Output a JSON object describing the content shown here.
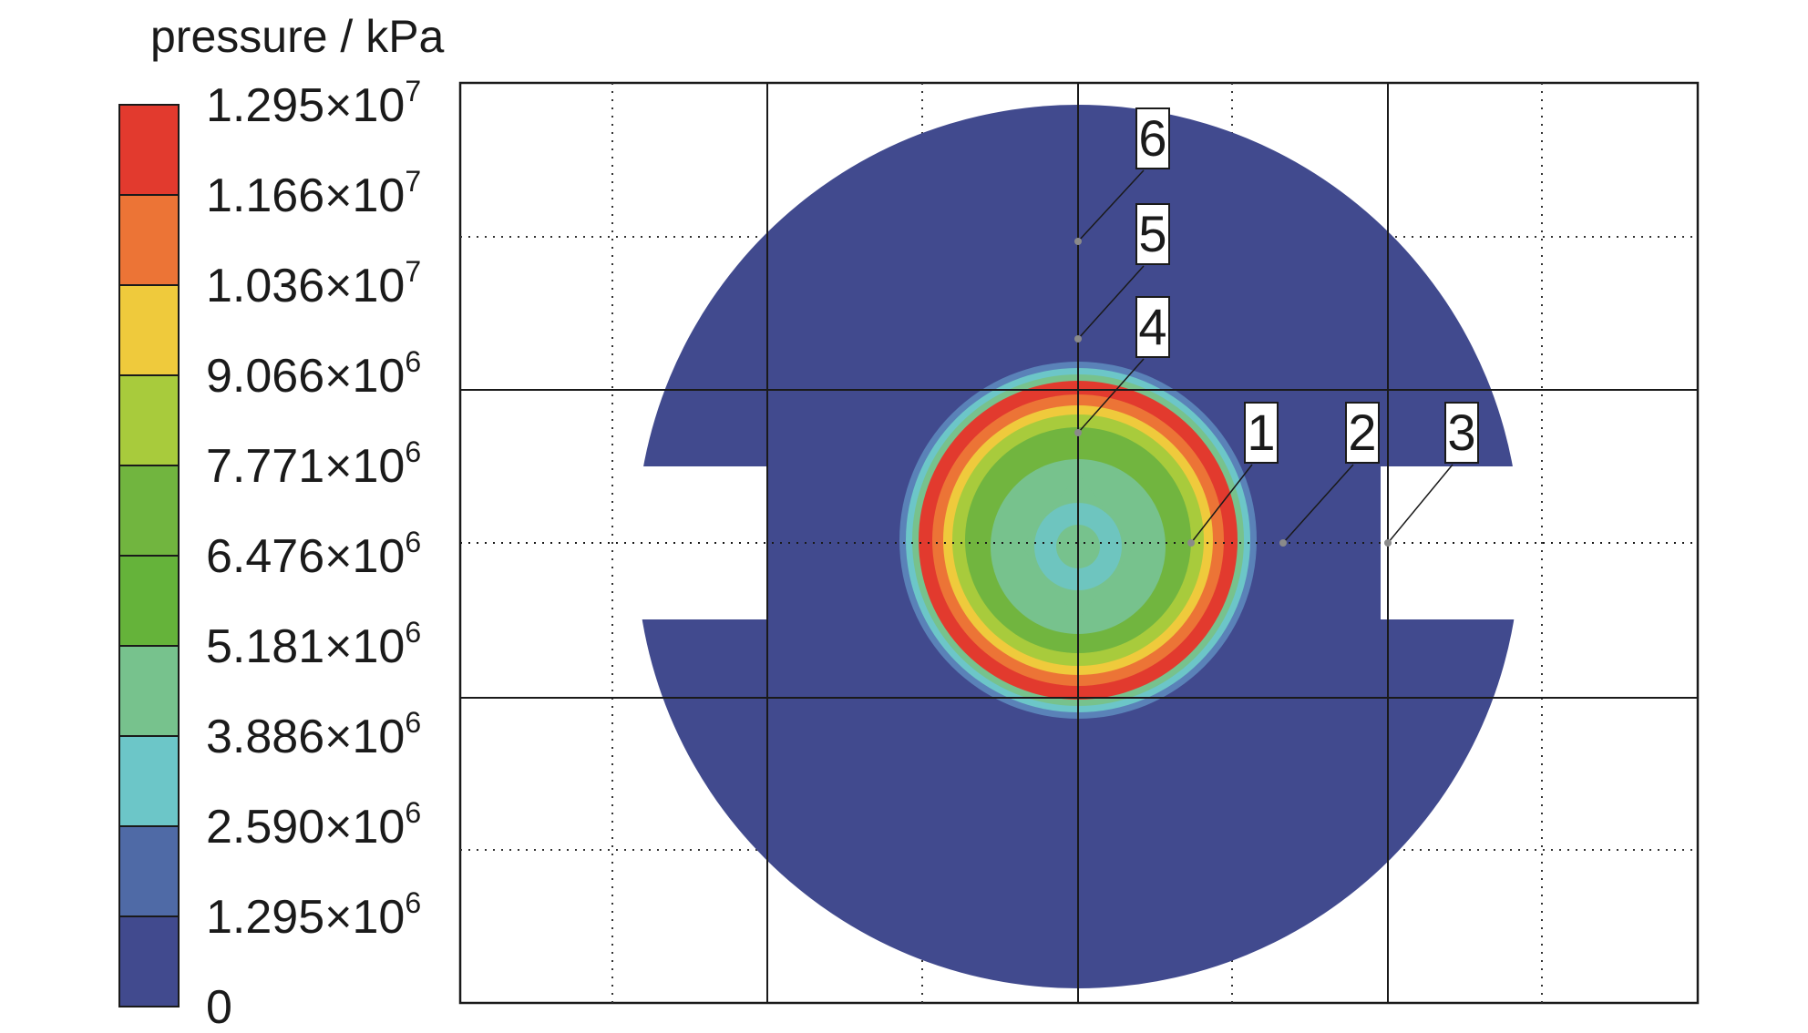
{
  "legend": {
    "title": "pressure / kPa",
    "bands": [
      {
        "color": "#e23a2e"
      },
      {
        "color": "#ec7436"
      },
      {
        "color": "#efca3c"
      },
      {
        "color": "#a8cb3c"
      },
      {
        "color": "#71b53f"
      },
      {
        "color": "#65b33a"
      },
      {
        "color": "#77c28d"
      },
      {
        "color": "#6cc6c8"
      },
      {
        "color": "#4f6aa6"
      },
      {
        "color": "#414a8e"
      }
    ],
    "ticks": [
      {
        "mant": "1.295×10",
        "exp": "7"
      },
      {
        "mant": "1.166×10",
        "exp": "7"
      },
      {
        "mant": "1.036×10",
        "exp": "7"
      },
      {
        "mant": "9.066×10",
        "exp": "6"
      },
      {
        "mant": "7.771×10",
        "exp": "6"
      },
      {
        "mant": "6.476×10",
        "exp": "6"
      },
      {
        "mant": "5.181×10",
        "exp": "6"
      },
      {
        "mant": "3.886×10",
        "exp": "6"
      },
      {
        "mant": "2.590×10",
        "exp": "6"
      },
      {
        "mant": "1.295×10",
        "exp": "6"
      },
      {
        "mant": "0",
        "exp": ""
      }
    ]
  },
  "points": [
    "1",
    "2",
    "3",
    "4",
    "5",
    "6"
  ]
}
